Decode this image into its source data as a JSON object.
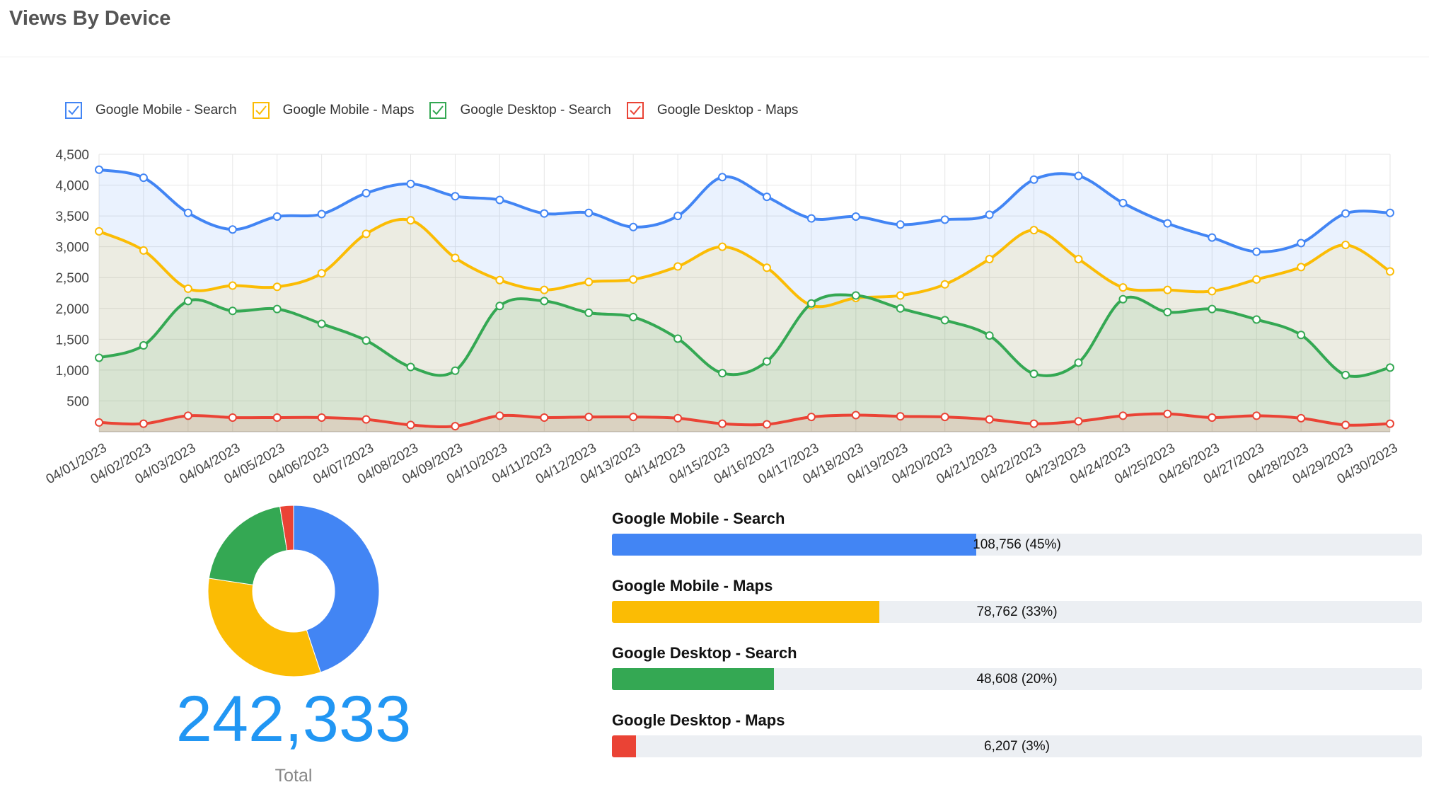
{
  "header": {
    "title": "Views By Device"
  },
  "colors": {
    "blue": "#4285f4",
    "yellow": "#fbbc04",
    "green": "#34a853",
    "red": "#ea4335",
    "total": "#2196f3"
  },
  "chart_data": [
    {
      "type": "area",
      "title": "",
      "legend_position": "top-left",
      "grid": true,
      "ylim": [
        0,
        4500
      ],
      "yticks": [
        "4,500",
        "4,000",
        "3,500",
        "3,000",
        "2,500",
        "2,000",
        "1,500",
        "1,000",
        "500"
      ],
      "categories": [
        "04/01/2023",
        "04/02/2023",
        "04/03/2023",
        "04/04/2023",
        "04/05/2023",
        "04/06/2023",
        "04/07/2023",
        "04/08/2023",
        "04/09/2023",
        "04/10/2023",
        "04/11/2023",
        "04/12/2023",
        "04/13/2023",
        "04/14/2023",
        "04/15/2023",
        "04/16/2023",
        "04/17/2023",
        "04/18/2023",
        "04/19/2023",
        "04/20/2023",
        "04/21/2023",
        "04/22/2023",
        "04/23/2023",
        "04/24/2023",
        "04/25/2023",
        "04/26/2023",
        "04/27/2023",
        "04/28/2023",
        "04/29/2023",
        "04/30/2023"
      ],
      "series": [
        {
          "name": "Google Mobile - Search",
          "color": "#4285f4",
          "values": [
            4250,
            4120,
            3550,
            3280,
            3490,
            3530,
            3870,
            4020,
            3820,
            3760,
            3540,
            3550,
            3320,
            3500,
            4130,
            3810,
            3460,
            3490,
            3360,
            3440,
            3520,
            4090,
            4150,
            3710,
            3380,
            3150,
            2920,
            3060,
            3540,
            3550
          ]
        },
        {
          "name": "Google Mobile - Maps",
          "color": "#fbbc04",
          "values": [
            3250,
            2940,
            2320,
            2370,
            2350,
            2570,
            3210,
            3430,
            2820,
            2460,
            2300,
            2430,
            2470,
            2680,
            3000,
            2660,
            2050,
            2170,
            2210,
            2390,
            2800,
            3270,
            2800,
            2340,
            2300,
            2280,
            2470,
            2670,
            3030,
            2600
          ]
        },
        {
          "name": "Google Desktop - Search",
          "color": "#34a853",
          "values": [
            1200,
            1400,
            2120,
            1960,
            1990,
            1750,
            1480,
            1050,
            990,
            2040,
            2120,
            1930,
            1860,
            1510,
            950,
            1140,
            2080,
            2210,
            2000,
            1810,
            1560,
            940,
            1120,
            2150,
            1940,
            1990,
            1820,
            1570,
            920,
            1040
          ]
        },
        {
          "name": "Google Desktop - Maps",
          "color": "#ea4335",
          "values": [
            150,
            130,
            260,
            230,
            230,
            230,
            200,
            110,
            90,
            260,
            230,
            240,
            240,
            220,
            130,
            120,
            240,
            270,
            250,
            240,
            200,
            130,
            170,
            260,
            290,
            230,
            260,
            220,
            110,
            130
          ]
        }
      ]
    },
    {
      "type": "pie",
      "donut": true,
      "categories": [
        "Google Mobile - Search",
        "Google Mobile - Maps",
        "Google Desktop - Search",
        "Google Desktop - Maps"
      ],
      "values": [
        108756,
        78762,
        48608,
        6207
      ],
      "colors": [
        "#4285f4",
        "#fbbc04",
        "#34a853",
        "#ea4335"
      ]
    }
  ],
  "total": {
    "value": "242,333",
    "label": "Total"
  },
  "breakdown": [
    {
      "label": "Google Mobile - Search",
      "value_text": "108,756 (45%)",
      "fraction": 0.45,
      "color": "#4285f4"
    },
    {
      "label": "Google Mobile - Maps",
      "value_text": "78,762 (33%)",
      "fraction": 0.33,
      "color": "#fbbc04"
    },
    {
      "label": "Google Desktop - Search",
      "value_text": "48,608 (20%)",
      "fraction": 0.2,
      "color": "#34a853"
    },
    {
      "label": "Google Desktop - Maps",
      "value_text": "6,207 (3%)",
      "fraction": 0.03,
      "color": "#ea4335"
    }
  ]
}
